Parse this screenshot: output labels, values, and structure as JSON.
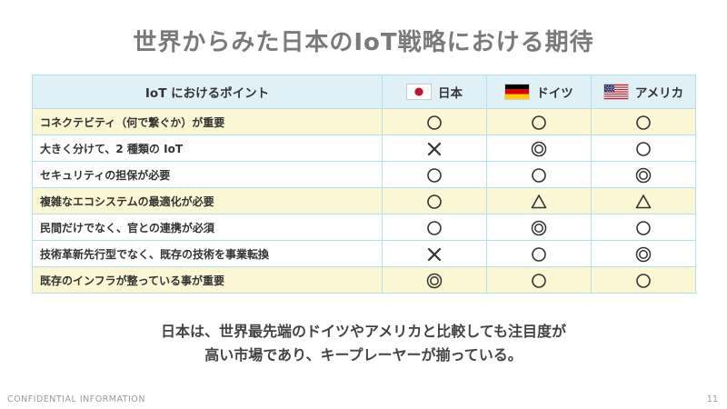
{
  "title": "世界からみた日本のIoT戦略における期待",
  "table": {
    "header": {
      "point": "IoT におけるポイント",
      "countries": [
        {
          "name": "日本",
          "flag": "japan-flag-icon"
        },
        {
          "name": "ドイツ",
          "flag": "germany-flag-icon"
        },
        {
          "name": "アメリカ",
          "flag": "usa-flag-icon"
        }
      ]
    },
    "rows": [
      {
        "point": "コネクテビティ（何で繋ぐか）が重要",
        "marks": [
          "circle",
          "circle",
          "circle"
        ],
        "highlight": true
      },
      {
        "point": "大きく分けて、2 種類の IoT",
        "marks": [
          "cross",
          "double-circle",
          "circle"
        ],
        "highlight": false
      },
      {
        "point": "セキュリティの担保が必要",
        "marks": [
          "circle",
          "circle",
          "double-circle"
        ],
        "highlight": false
      },
      {
        "point": "複雑なエコシステムの最適化が必要",
        "marks": [
          "circle",
          "triangle",
          "triangle"
        ],
        "highlight": true
      },
      {
        "point": "民間だけでなく、官との連携が必須",
        "marks": [
          "circle",
          "double-circle",
          "circle"
        ],
        "highlight": false
      },
      {
        "point": "技術革新先行型でなく、既存の技術を事業転換",
        "marks": [
          "cross",
          "circle",
          "double-circle"
        ],
        "highlight": false
      },
      {
        "point": "既存のインフラが整っている事が重要",
        "marks": [
          "double-circle",
          "circle",
          "circle"
        ],
        "highlight": true
      }
    ]
  },
  "summary": {
    "line1": "日本は、世界最先端のドイツやアメリカと比較しても注目度が",
    "line2": "高い市場であり、キープレーヤーが揃っている。"
  },
  "footer": {
    "left": "CONFIDENTIAL  INFORMATION",
    "page": "11"
  },
  "colors": {
    "header_bg": "#dff1f7",
    "highlight_row": "#fbf7d5",
    "border": "#b7dfea",
    "title": "#7a7a7a"
  }
}
